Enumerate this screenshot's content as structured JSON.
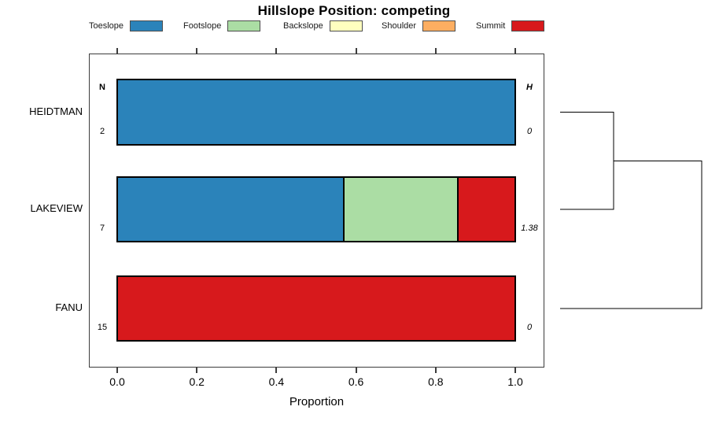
{
  "ui": {
    "title": "Hillslope Position: competing",
    "xlabel": "Proportion",
    "tick_labels": [
      "0.0",
      "0.2",
      "0.4",
      "0.6",
      "0.8",
      "1.0"
    ],
    "n_header": "N",
    "h_header": "H",
    "legend_items": [
      {
        "label": "Toeslope",
        "color": "#2B83BA"
      },
      {
        "label": "Footslope",
        "color": "#ABDDA4"
      },
      {
        "label": "Backslope",
        "color": "#FFFFBF"
      },
      {
        "label": "Shoulder",
        "color": "#FDAE61"
      },
      {
        "label": "Summit",
        "color": "#D7191C"
      }
    ],
    "colors": {
      "Toeslope": "#2B83BA",
      "Footslope": "#ABDDA4",
      "Backslope": "#FFFFBF",
      "Shoulder": "#FDAE61",
      "Summit": "#D7191C"
    },
    "rows": [
      {
        "name": "HEIDTMAN",
        "n": "2",
        "h": "0",
        "segments": [
          {
            "name": "Toeslope",
            "fraction": 1.0
          }
        ]
      },
      {
        "name": "LAKEVIEW",
        "n": "7",
        "h": "1.38",
        "segments": [
          {
            "name": "Toeslope",
            "fraction": 0.5714
          },
          {
            "name": "Footslope",
            "fraction": 0.2857
          },
          {
            "name": "Summit",
            "fraction": 0.1429
          }
        ]
      },
      {
        "name": "FANU",
        "n": "15",
        "h": "0",
        "segments": [
          {
            "name": "Summit",
            "fraction": 1.0
          }
        ]
      }
    ]
  },
  "chart_data": {
    "type": "bar",
    "subtype": "horizontal-stacked-proportion",
    "title": "Hillslope Position: competing",
    "xlabel": "Proportion",
    "ylabel": "",
    "xlim": [
      0.0,
      1.0
    ],
    "xticks": [
      0.0,
      0.2,
      0.4,
      0.6,
      0.8,
      1.0
    ],
    "grid": false,
    "legend_position": "top",
    "categories": [
      "HEIDTMAN",
      "LAKEVIEW",
      "FANU"
    ],
    "series": [
      {
        "name": "Toeslope",
        "color": "#2B83BA",
        "values": [
          1.0,
          0.5714,
          0.0
        ]
      },
      {
        "name": "Footslope",
        "color": "#ABDDA4",
        "values": [
          0.0,
          0.2857,
          0.0
        ]
      },
      {
        "name": "Backslope",
        "color": "#FFFFBF",
        "values": [
          0.0,
          0.0,
          0.0
        ]
      },
      {
        "name": "Shoulder",
        "color": "#FDAE61",
        "values": [
          0.0,
          0.0,
          0.0
        ]
      },
      {
        "name": "Summit",
        "color": "#D7191C",
        "values": [
          0.0,
          0.1429,
          1.0
        ]
      }
    ],
    "annotations": {
      "N_header": "N",
      "H_header": "H",
      "N": [
        2,
        7,
        15
      ],
      "H": [
        0,
        1.38,
        0
      ]
    },
    "dendrogram": {
      "side": "right",
      "leaves": [
        "HEIDTMAN",
        "LAKEVIEW",
        "FANU"
      ],
      "merges": [
        {
          "children": [
            "HEIDTMAN",
            "LAKEVIEW"
          ],
          "relative_height": 0.378
        },
        {
          "children": [
            "(HEIDTMAN,LAKEVIEW)",
            "FANU"
          ],
          "relative_height": 1.0
        }
      ]
    }
  }
}
